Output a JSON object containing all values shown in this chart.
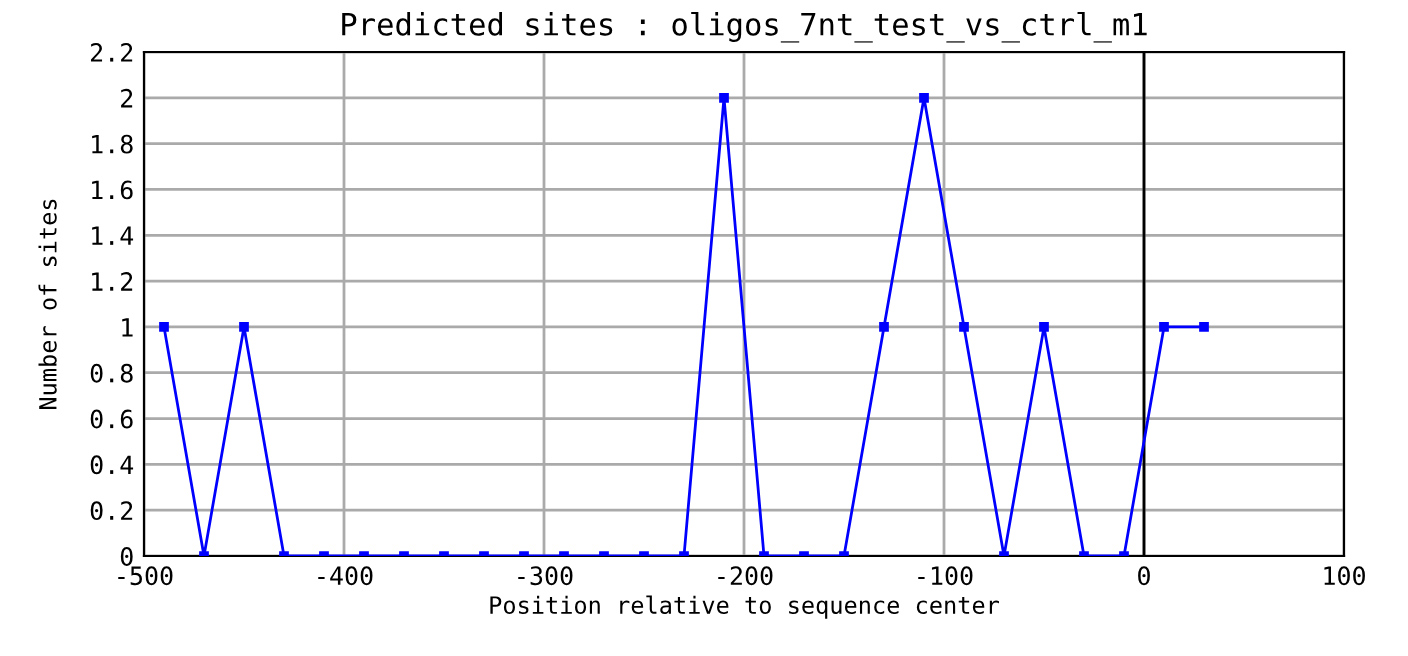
{
  "chart_data": {
    "type": "line",
    "title": "Predicted sites : oligos_7nt_test_vs_ctrl_m1",
    "xlabel": "Position relative to sequence center",
    "ylabel": "Number of sites",
    "x": [
      -490,
      -470,
      -450,
      -430,
      -410,
      -390,
      -370,
      -350,
      -330,
      -310,
      -290,
      -270,
      -250,
      -230,
      -210,
      -190,
      -170,
      -150,
      -130,
      -110,
      -90,
      -70,
      -50,
      -30,
      -10,
      10,
      30
    ],
    "series": [
      {
        "color": "#0000ff",
        "values": [
          1,
          0,
          1,
          0,
          0,
          0,
          0,
          0,
          0,
          0,
          0,
          0,
          0,
          0,
          2,
          0,
          0,
          0,
          1,
          2,
          1,
          0,
          1,
          0,
          0,
          1,
          1
        ]
      }
    ],
    "xlim": [
      -500,
      100
    ],
    "xticks": [
      -500,
      -400,
      -300,
      -200,
      -100,
      0,
      100
    ],
    "ylim": [
      0,
      2.2
    ],
    "yticks": [
      0,
      0.2,
      0.4,
      0.6,
      0.8,
      1,
      1.2,
      1.4,
      1.6,
      1.8,
      2,
      2.2
    ],
    "ref_lines": [
      {
        "axis": "x",
        "value": 0,
        "color": "#000000"
      }
    ],
    "grid": true,
    "marker": "square",
    "line_style": "solid"
  }
}
